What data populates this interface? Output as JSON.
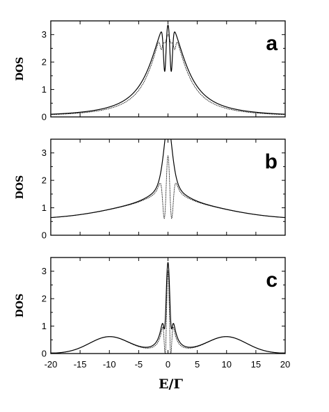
{
  "chart_data": [
    {
      "type": "line",
      "panel_label": "a",
      "ylabel": "DOS",
      "xlim": [
        -20,
        20
      ],
      "ylim": [
        0,
        3.5
      ],
      "yticks": [
        "0",
        "1",
        "2",
        "3"
      ],
      "series": [
        {
          "params": {
            "gamma": 3.4,
            "dips": [
              [
                -0.55,
                0.22,
                1.75
              ],
              [
                0.55,
                0.22,
                1.75
              ]
            ],
            "lobeAmp": 0,
            "lobeWidth": 4
          }
        },
        {
          "params": {
            "gamma": 3.1,
            "dips": [
              [
                -0.5,
                0.35,
                0.7
              ],
              [
                0.5,
                0.35,
                0.7
              ],
              [
                -1.15,
                0.2,
                0.5
              ],
              [
                1.15,
                0.2,
                0.5
              ]
            ],
            "lobeAmp": 0,
            "lobeWidth": 4
          }
        }
      ]
    },
    {
      "type": "line",
      "panel_label": "b",
      "ylabel": "DOS",
      "xlim": [
        -20,
        20
      ],
      "ylim": [
        0,
        3.5
      ],
      "yticks": [
        "0",
        "1",
        "2",
        "3"
      ],
      "series": [
        {
          "params": {
            "gamma": 1.1,
            "dips": [],
            "lobeAmp": 0.58,
            "lobeWidth": 4.6
          }
        },
        {
          "params": {
            "gamma": 1.0,
            "dips": [
              [
                -0.55,
                0.32,
                2.6
              ],
              [
                0.55,
                0.32,
                2.6
              ]
            ],
            "lobeAmp": 0.58,
            "lobeWidth": 4.6
          }
        }
      ]
    },
    {
      "type": "line",
      "panel_label": "c",
      "ylabel": "DOS",
      "xlim": [
        -20,
        20
      ],
      "ylim": [
        0,
        3.5
      ],
      "yticks": [
        "0",
        "1",
        "2",
        "3"
      ],
      "xticks": [
        "-20",
        "-15",
        "-10",
        "-5",
        "0",
        "5",
        "10",
        "15",
        "20"
      ],
      "xlabel": "E/Γ",
      "series": [
        {
          "params": {
            "gamma": 0.7,
            "dips": [
              [
                -0.5,
                0.22,
                1.25
              ],
              [
                0.5,
                0.22,
                1.25
              ]
            ],
            "lobeAmp": 0.6,
            "lobeWidth": 3.4,
            "lobeCenter": 10
          }
        },
        {
          "params": {
            "gamma": 0.6,
            "dips": [
              [
                -0.42,
                0.2,
                2.3
              ],
              [
                0.42,
                0.2,
                2.3
              ]
            ],
            "lobeAmp": 0.6,
            "lobeWidth": 3.4,
            "lobeCenter": 10
          }
        }
      ]
    }
  ]
}
